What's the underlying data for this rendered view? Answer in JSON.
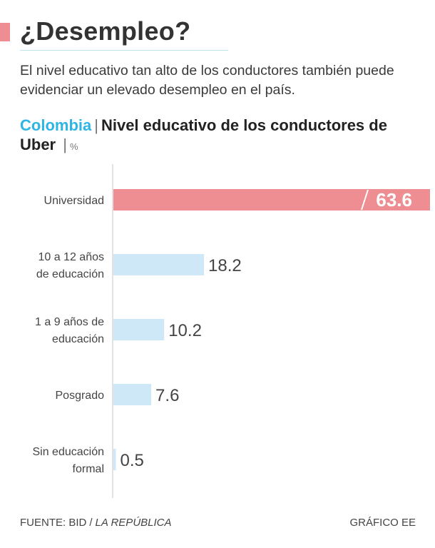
{
  "header": {
    "title": "¿Desempleo?",
    "subtitle": "El nivel educativo tan alto de los conductores también puede evidenciar un elevado desempleo en el país."
  },
  "chart_heading": {
    "country": "Colombia",
    "separator": "|",
    "title": "Nivel educativo de los conductores de Uber",
    "unit_separator": "|",
    "unit": "%"
  },
  "footer": {
    "source_prefix": "FUENTE: BID",
    "source_separator": "/",
    "source_publication": "LA REPÚBLICA",
    "credit": "GRÁFICO EE"
  },
  "colors": {
    "highlight": "#ee8e92",
    "bar": "#cfe8f7",
    "axis": "#d9d9d9",
    "accent": "#2fb5e3"
  },
  "chart_data": {
    "type": "bar",
    "orientation": "horizontal",
    "title": "Nivel educativo de los conductores de Uber",
    "unit": "%",
    "categories": [
      [
        "Universidad"
      ],
      [
        "10 a 12 años",
        "de educación"
      ],
      [
        "1 a 9 años de",
        "educación"
      ],
      [
        "Posgrado"
      ],
      [
        "Sin educación",
        "formal"
      ]
    ],
    "values": [
      63.6,
      18.2,
      10.2,
      7.6,
      0.5
    ],
    "highlight_index": 0,
    "value_labels": [
      "63.6",
      "18.2",
      "10.2",
      "7.6",
      "0.5"
    ],
    "xlim": [
      0,
      63.6
    ]
  }
}
